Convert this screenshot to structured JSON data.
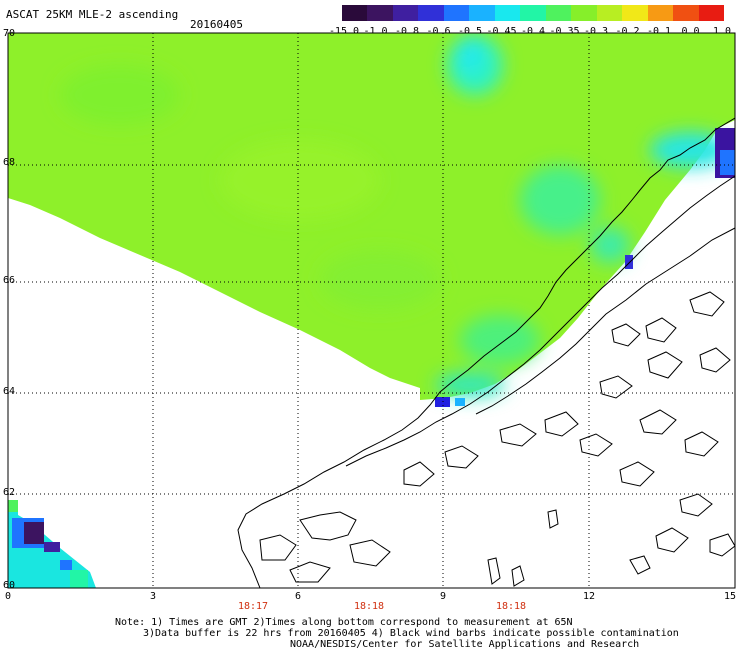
{
  "header": {
    "title": "ASCAT 25KM MLE-2 ascending",
    "date": "20160405"
  },
  "colorbar": {
    "labels": [
      "-15.0",
      "-1.0",
      "-0.8",
      "-0.6",
      "-0.5",
      "-0.45",
      "-0.4",
      "-0.35",
      "-0.3",
      "-0.2",
      "-0.1",
      "0.0",
      "1.0"
    ],
    "colors": [
      "#2a0a3a",
      "#3c1460",
      "#3f1fa0",
      "#3030d8",
      "#1f74ff",
      "#1ab2ff",
      "#19e8ee",
      "#22f5a6",
      "#4ff25e",
      "#86ef2a",
      "#b8ee22",
      "#f1e818",
      "#f79a14",
      "#f05012",
      "#e81c12"
    ]
  },
  "axes": {
    "lat_labels": [
      "70",
      "68",
      "66",
      "64",
      "62",
      "60"
    ],
    "lon_labels": [
      "0",
      "3",
      "6",
      "9",
      "12",
      "15"
    ],
    "time_labels": [
      "18:17",
      "18:18",
      "18:18"
    ]
  },
  "notes": {
    "line1": "Note: 1) Times are GMT 2)Times along bottom correspond to measurement at 65N",
    "line2": "3)Data buffer is 22 hrs from 20160405 4) Black wind barbs indicate possible contamination",
    "line3": "NOAA/NESDIS/Center for Satellite Applications and Research"
  },
  "colors": {
    "field_green": "#8ef02a",
    "land_outline": "#000000",
    "gridline": "#000000"
  }
}
